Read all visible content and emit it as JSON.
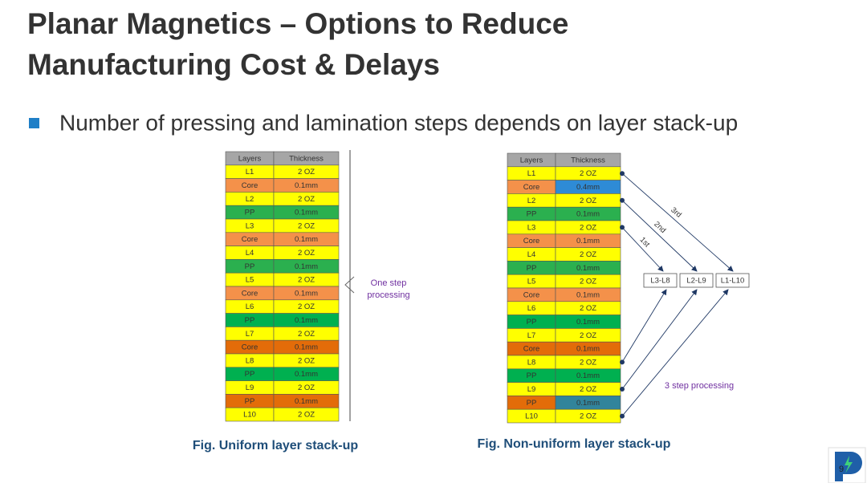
{
  "title": {
    "line1": "Planar Magnetics – Options to Reduce",
    "line2": "Manufacturing Cost & Delays"
  },
  "bullet": "Number of pressing and lamination steps depends on layer stack-up",
  "left_table": {
    "header": [
      "Layers",
      "Thickness"
    ],
    "rows": [
      {
        "cells": [
          "L1",
          "2 OZ"
        ],
        "color": "#ffff00"
      },
      {
        "cells": [
          "Core",
          "0.1mm"
        ],
        "color": "#f4914a"
      },
      {
        "cells": [
          "L2",
          "2 OZ"
        ],
        "color": "#ffff00"
      },
      {
        "cells": [
          "PP",
          "0.1mm"
        ],
        "color": "#2bb04f"
      },
      {
        "cells": [
          "L3",
          "2 OZ"
        ],
        "color": "#ffff00"
      },
      {
        "cells": [
          "Core",
          "0.1mm"
        ],
        "color": "#f4914a"
      },
      {
        "cells": [
          "L4",
          "2 OZ"
        ],
        "color": "#ffff00"
      },
      {
        "cells": [
          "PP",
          "0.1mm"
        ],
        "color": "#2bb04f"
      },
      {
        "cells": [
          "L5",
          "2 OZ"
        ],
        "color": "#ffff00"
      },
      {
        "cells": [
          "Core",
          "0.1mm"
        ],
        "color": "#f4914a"
      },
      {
        "cells": [
          "L6",
          "2 OZ"
        ],
        "color": "#ffff00"
      },
      {
        "cells": [
          "PP",
          "0.1mm"
        ],
        "color": "#00b050"
      },
      {
        "cells": [
          "L7",
          "2 OZ"
        ],
        "color": "#ffff00"
      },
      {
        "cells": [
          "Core",
          "0.1mm"
        ],
        "color": "#e36c09"
      },
      {
        "cells": [
          "L8",
          "2 OZ"
        ],
        "color": "#ffff00"
      },
      {
        "cells": [
          "PP",
          "0.1mm"
        ],
        "color": "#00b050"
      },
      {
        "cells": [
          "L9",
          "2 OZ"
        ],
        "color": "#ffff00"
      },
      {
        "cells": [
          "PP",
          "0.1mm"
        ],
        "color": "#e36c09"
      },
      {
        "cells": [
          "L10",
          "2 OZ"
        ],
        "color": "#ffff00"
      }
    ],
    "note": "One step processing",
    "caption": "Fig. Uniform layer stack-up"
  },
  "right_table": {
    "header": [
      "Layers",
      "Thickness"
    ],
    "rows": [
      {
        "cells": [
          "L1",
          "2 OZ"
        ],
        "color": "#ffff00"
      },
      {
        "cells": [
          "Core",
          "0.4mm"
        ],
        "color": "#f4914a",
        "thickness_color": "#2e8bd6"
      },
      {
        "cells": [
          "L2",
          "2 OZ"
        ],
        "color": "#ffff00"
      },
      {
        "cells": [
          "PP",
          "0.1mm"
        ],
        "color": "#2bb04f"
      },
      {
        "cells": [
          "L3",
          "2 OZ"
        ],
        "color": "#ffff00"
      },
      {
        "cells": [
          "Core",
          "0.1mm"
        ],
        "color": "#f4914a"
      },
      {
        "cells": [
          "L4",
          "2 OZ"
        ],
        "color": "#ffff00"
      },
      {
        "cells": [
          "PP",
          "0.1mm"
        ],
        "color": "#2bb04f"
      },
      {
        "cells": [
          "L5",
          "2 OZ"
        ],
        "color": "#ffff00"
      },
      {
        "cells": [
          "Core",
          "0.1mm"
        ],
        "color": "#f4914a"
      },
      {
        "cells": [
          "L6",
          "2 OZ"
        ],
        "color": "#ffff00"
      },
      {
        "cells": [
          "PP",
          "0.1mm"
        ],
        "color": "#00b050"
      },
      {
        "cells": [
          "L7",
          "2 OZ"
        ],
        "color": "#ffff00"
      },
      {
        "cells": [
          "Core",
          "0.1mm"
        ],
        "color": "#e36c09"
      },
      {
        "cells": [
          "L8",
          "2 OZ"
        ],
        "color": "#ffff00"
      },
      {
        "cells": [
          "PP",
          "0.1mm"
        ],
        "color": "#00b050"
      },
      {
        "cells": [
          "L9",
          "2 OZ"
        ],
        "color": "#ffff00"
      },
      {
        "cells": [
          "PP",
          "0.1mm"
        ],
        "color": "#e36c09",
        "thickness_color": "#31849b"
      },
      {
        "cells": [
          "L10",
          "2 OZ"
        ],
        "color": "#ffff00"
      }
    ],
    "steps": [
      "1st",
      "2nd",
      "3rd"
    ],
    "boxes": [
      "L3-L8",
      "L2-L9",
      "L1-L10"
    ],
    "note": "3 step processing",
    "caption": "Fig. Non-uniform layer stack-up"
  },
  "page_number": "9"
}
